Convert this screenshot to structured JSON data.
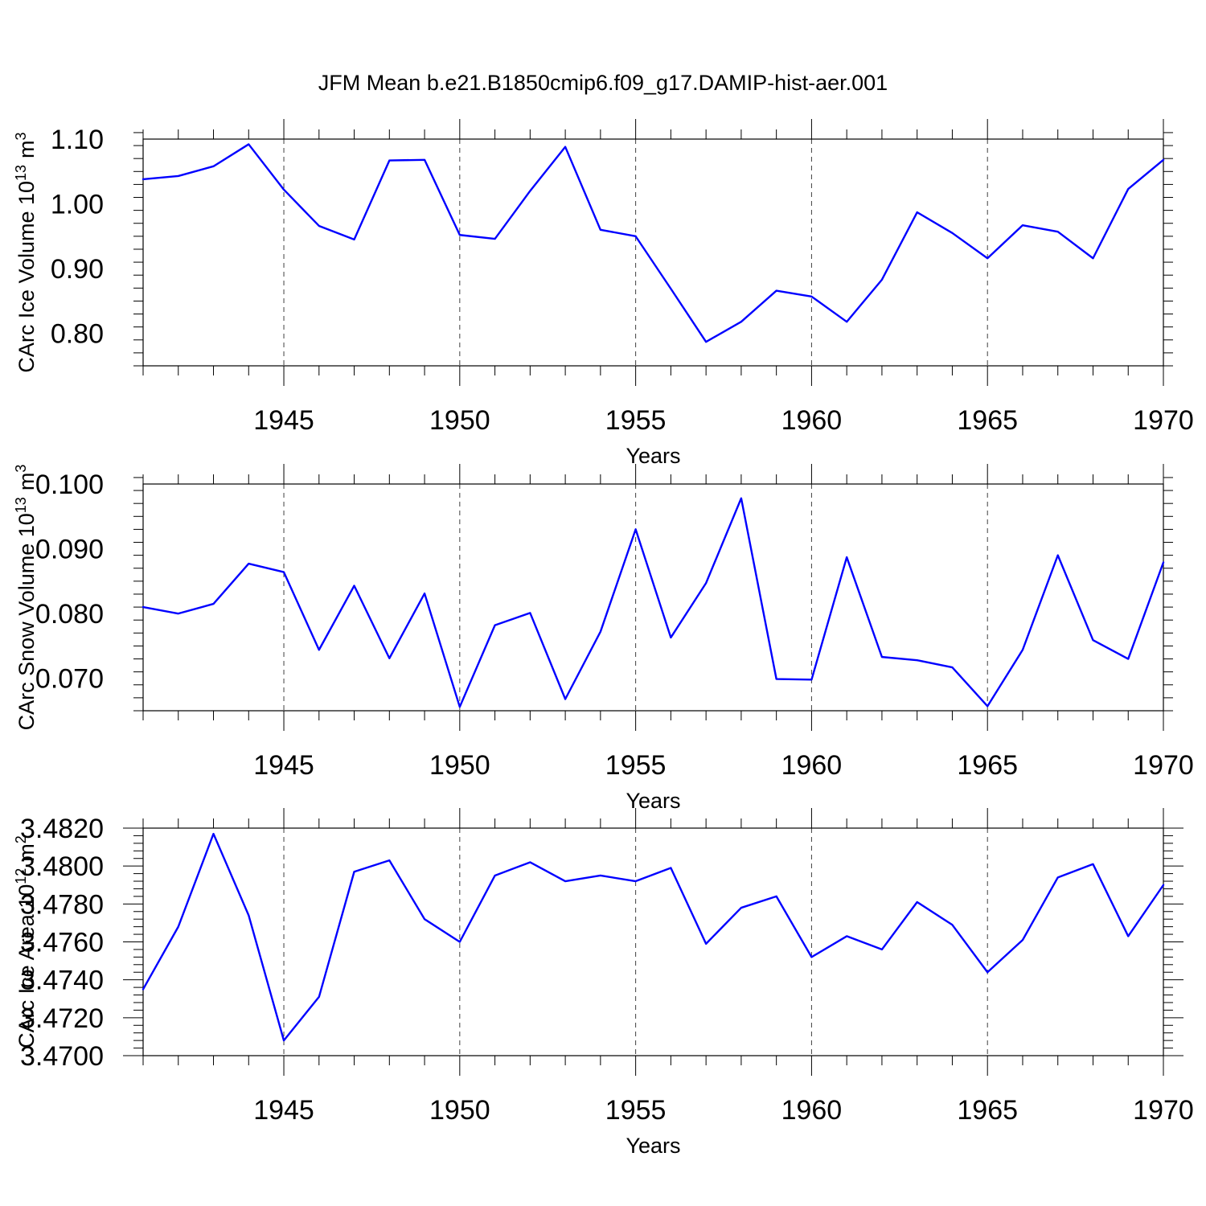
{
  "figure": {
    "title": "JFM Mean b.e21.B1850cmip6.f09_g17.DAMIP-hist-aer.001",
    "line_color": "#0000ff"
  },
  "chart_data": [
    {
      "type": "line",
      "xlabel": "Years",
      "ylabel": "CArc Ice Volume 10",
      "ylabel_exponent": "13",
      "ylabel_unit": "m",
      "ylabel_unit_exponent": "3",
      "xlim": [
        1941,
        1970
      ],
      "ylim": [
        0.75,
        1.1
      ],
      "xticks": [
        1945,
        1950,
        1955,
        1960,
        1965,
        1970
      ],
      "yticks": [
        0.8,
        0.9,
        1.0,
        1.1
      ],
      "ytick_labels": [
        "0.80",
        "0.90",
        "1.00",
        "1.10"
      ],
      "grid": "vertical dashed at major x ticks",
      "x": [
        1941,
        1942,
        1943,
        1944,
        1945,
        1946,
        1947,
        1948,
        1949,
        1950,
        1951,
        1952,
        1953,
        1954,
        1955,
        1956,
        1957,
        1958,
        1959,
        1960,
        1961,
        1962,
        1963,
        1964,
        1965,
        1966,
        1967,
        1968,
        1969,
        1970
      ],
      "series": [
        {
          "values": [
            1.038,
            1.043,
            1.058,
            1.092,
            1.022,
            0.966,
            0.945,
            1.067,
            1.068,
            0.952,
            0.946,
            1.02,
            1.088,
            0.96,
            0.95,
            0.869,
            0.787,
            0.818,
            0.866,
            0.857,
            0.818,
            0.883,
            0.987,
            0.955,
            0.916,
            0.967,
            0.957,
            0.916,
            1.023,
            1.068
          ]
        }
      ]
    },
    {
      "type": "line",
      "xlabel": "Years",
      "ylabel": "CArc Snow Volume 10",
      "ylabel_exponent": "13",
      "ylabel_unit": "m",
      "ylabel_unit_exponent": "3",
      "xlim": [
        1941,
        1970
      ],
      "ylim": [
        0.065,
        0.1
      ],
      "xticks": [
        1945,
        1950,
        1955,
        1960,
        1965,
        1970
      ],
      "yticks": [
        0.07,
        0.08,
        0.09,
        0.1
      ],
      "ytick_labels": [
        "0.070",
        "0.080",
        "0.090",
        "0.100"
      ],
      "grid": "vertical dashed at major x ticks",
      "x": [
        1941,
        1942,
        1943,
        1944,
        1945,
        1946,
        1947,
        1948,
        1949,
        1950,
        1951,
        1952,
        1953,
        1954,
        1955,
        1956,
        1957,
        1958,
        1959,
        1960,
        1961,
        1962,
        1963,
        1964,
        1965,
        1966,
        1967,
        1968,
        1969,
        1970
      ],
      "series": [
        {
          "values": [
            0.081,
            0.08,
            0.0815,
            0.0877,
            0.0864,
            0.0744,
            0.0843,
            0.0731,
            0.0831,
            0.0656,
            0.0782,
            0.0801,
            0.0668,
            0.0772,
            0.093,
            0.0763,
            0.0847,
            0.0978,
            0.0699,
            0.0698,
            0.0887,
            0.0733,
            0.0728,
            0.0717,
            0.0657,
            0.0744,
            0.089,
            0.0759,
            0.073,
            0.0879
          ]
        }
      ]
    },
    {
      "type": "line",
      "xlabel": "Years",
      "ylabel": "CArc Ice Area 10",
      "ylabel_exponent": "12",
      "ylabel_unit": "m",
      "ylabel_unit_exponent": "2",
      "xlim": [
        1941,
        1970
      ],
      "ylim": [
        3.47,
        3.482
      ],
      "xticks": [
        1945,
        1950,
        1955,
        1960,
        1965,
        1970
      ],
      "yticks": [
        3.47,
        3.472,
        3.474,
        3.476,
        3.478,
        3.48,
        3.482
      ],
      "ytick_labels": [
        "3.4700",
        "3.4720",
        "3.4740",
        "3.4760",
        "3.4780",
        "3.4800",
        "3.4820"
      ],
      "grid": "vertical dashed at major x ticks",
      "x": [
        1941,
        1942,
        1943,
        1944,
        1945,
        1946,
        1947,
        1948,
        1949,
        1950,
        1951,
        1952,
        1953,
        1954,
        1955,
        1956,
        1957,
        1958,
        1959,
        1960,
        1961,
        1962,
        1963,
        1964,
        1965,
        1966,
        1967,
        1968,
        1969,
        1970
      ],
      "series": [
        {
          "values": [
            3.4735,
            3.4768,
            3.4817,
            3.4774,
            3.4708,
            3.4731,
            3.4797,
            3.4803,
            3.4772,
            3.476,
            3.4795,
            3.4802,
            3.4792,
            3.4795,
            3.4792,
            3.4799,
            3.4759,
            3.4778,
            3.4784,
            3.4752,
            3.4763,
            3.4756,
            3.4781,
            3.4769,
            3.4744,
            3.4761,
            3.4794,
            3.4801,
            3.4763,
            3.479
          ]
        }
      ]
    }
  ]
}
